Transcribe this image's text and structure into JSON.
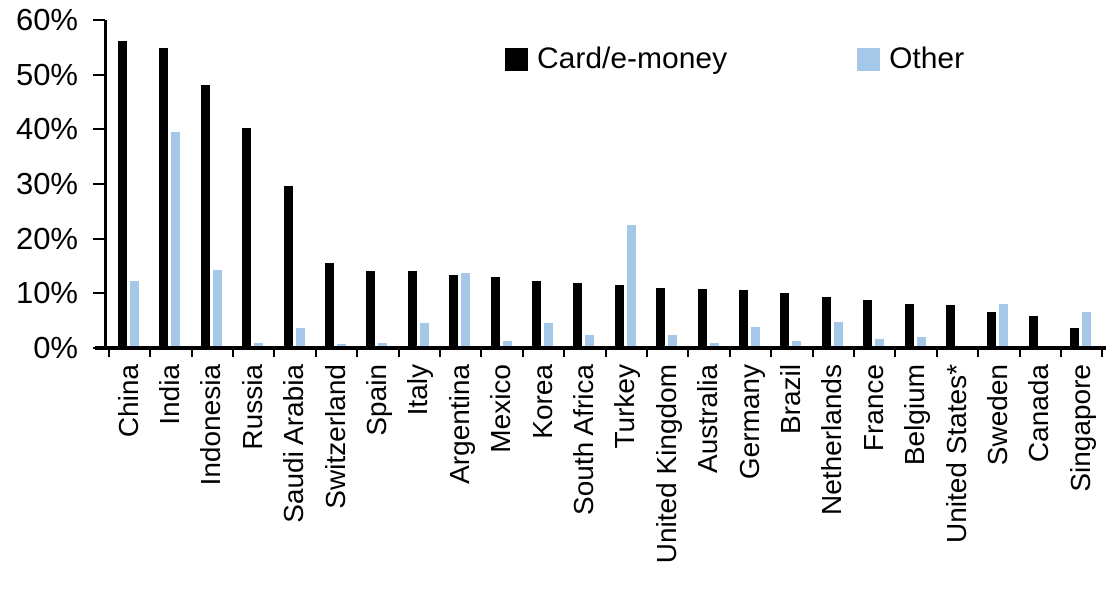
{
  "chart_data": {
    "type": "bar",
    "title": "",
    "xlabel": "",
    "ylabel": "",
    "ylim": [
      0,
      60
    ],
    "y_tick_labels": [
      "0%",
      "10%",
      "20%",
      "30%",
      "40%",
      "50%",
      "60%"
    ],
    "grid": false,
    "legend_position": "top-center",
    "categories": [
      "China",
      "India",
      "Indonesia",
      "Russia",
      "Saudi Arabia",
      "Switzerland",
      "Spain",
      "Italy",
      "Argentina",
      "Mexico",
      "Korea",
      "South Africa",
      "Turkey",
      "United Kingdom",
      "Australia",
      "Germany",
      "Brazil",
      "Netherlands",
      "France",
      "Belgium",
      "United States*",
      "Sweden",
      "Canada",
      "Singapore"
    ],
    "series": [
      {
        "name": "Card/e-money",
        "color": "#000000",
        "values": [
          56.2,
          54.9,
          48.2,
          40.3,
          29.7,
          15.5,
          14.0,
          14.0,
          13.4,
          12.9,
          12.2,
          11.8,
          11.6,
          11.0,
          10.8,
          10.6,
          10.0,
          9.3,
          8.7,
          8.1,
          7.8,
          6.5,
          5.9,
          3.7
        ]
      },
      {
        "name": "Other",
        "color": "#A6C8E8",
        "values": [
          12.2,
          39.6,
          14.3,
          0.9,
          3.7,
          0.7,
          0.9,
          4.6,
          13.8,
          1.3,
          4.5,
          2.4,
          22.5,
          2.4,
          1.0,
          3.9,
          1.2,
          4.8,
          1.6,
          2.1,
          0.2,
          8.0,
          0.0,
          6.6
        ]
      }
    ]
  },
  "colors": {
    "axis": "#000000",
    "background": "#FFFFFF"
  }
}
